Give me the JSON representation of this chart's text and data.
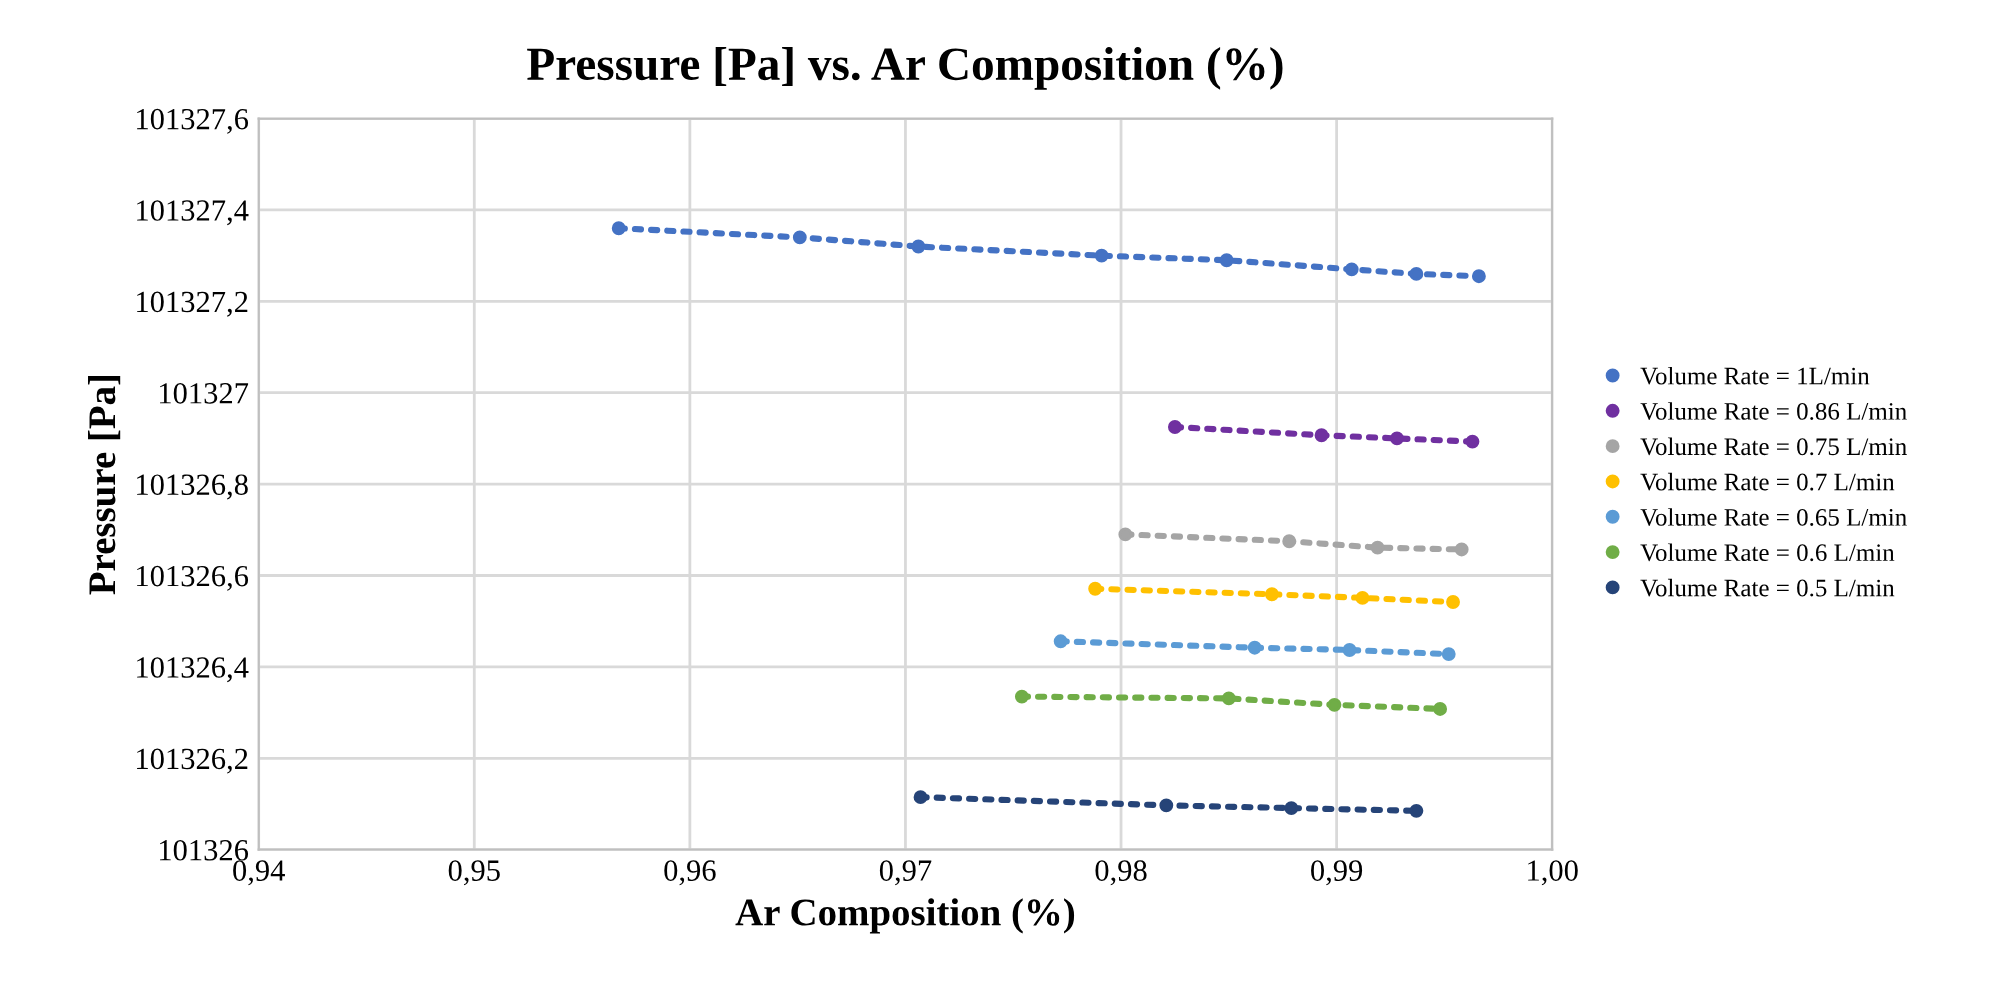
{
  "chart_data": {
    "type": "line",
    "title": "Pressure [Pa] vs. Ar Composition (%)",
    "xlabel": "Ar Composition (%)",
    "ylabel": "Pressure [Pa]",
    "xlim": [
      0.94,
      1.0
    ],
    "xticks": [
      {
        "value": 0.94,
        "label": "0,94"
      },
      {
        "value": 0.95,
        "label": "0,95"
      },
      {
        "value": 0.96,
        "label": "0,96"
      },
      {
        "value": 0.97,
        "label": "0,97"
      },
      {
        "value": 0.98,
        "label": "0,98"
      },
      {
        "value": 0.99,
        "label": "0,99"
      },
      {
        "value": 1.0,
        "label": "1,00"
      }
    ],
    "ylim": [
      101326,
      101327.6
    ],
    "yticks": [
      101326,
      {
        "value": 101326.2,
        "label": "101326,2"
      },
      {
        "value": 101326.4,
        "label": "101326,4"
      },
      {
        "value": 101326.6,
        "label": "101326,6"
      },
      {
        "value": 101326.8,
        "label": "101326,8"
      },
      101327,
      {
        "value": 101327.2,
        "label": "101327,2"
      },
      {
        "value": 101327.4,
        "label": "101327,4"
      },
      {
        "value": 101327.6,
        "label": "101327,6"
      }
    ],
    "grid": true,
    "legend": "right",
    "marker": "circle",
    "line_style": "dotted",
    "series": [
      {
        "name": "Volume Rate = 1L/min",
        "color": "#4472c4",
        "x": [
          0.9567,
          0.9651,
          0.9706,
          0.9791,
          0.9849,
          0.9907,
          0.9937,
          0.9966
        ],
        "values": [
          101327.36,
          101327.34,
          101327.32,
          101327.3,
          101327.29,
          101327.27,
          101327.26,
          101327.255
        ]
      },
      {
        "name": "Volume Rate = 0.86 L/min",
        "color": "#7030a0",
        "x": [
          0.9825,
          0.9893,
          0.9928,
          0.9963
        ],
        "values": [
          101326.925,
          101326.907,
          101326.9,
          101326.893
        ]
      },
      {
        "name": "Volume Rate = 0.75 L/min",
        "color": "#a5a5a5",
        "x": [
          0.9802,
          0.9878,
          0.9919,
          0.9958
        ],
        "values": [
          101326.69,
          101326.675,
          101326.661,
          101326.657
        ]
      },
      {
        "name": "Volume Rate = 0.7 L/min",
        "color": "#ffc000",
        "x": [
          0.9788,
          0.987,
          0.9912,
          0.9954
        ],
        "values": [
          101326.571,
          101326.559,
          101326.551,
          101326.542
        ]
      },
      {
        "name": "Volume Rate = 0.65 L/min",
        "color": "#5b9bd5",
        "x": [
          0.9772,
          0.9862,
          0.9906,
          0.9952
        ],
        "values": [
          101326.456,
          101326.442,
          101326.437,
          101326.428
        ]
      },
      {
        "name": "Volume Rate = 0.6 L/min",
        "color": "#70ad47",
        "x": [
          0.9754,
          0.985,
          0.9899,
          0.9948
        ],
        "values": [
          101326.335,
          101326.331,
          101326.317,
          101326.308
        ]
      },
      {
        "name": "Volume Rate = 0.5 L/min",
        "color": "#264478",
        "x": [
          0.9707,
          0.9821,
          0.9879,
          0.9937
        ],
        "values": [
          101326.115,
          101326.097,
          101326.091,
          101326.085
        ]
      }
    ]
  }
}
